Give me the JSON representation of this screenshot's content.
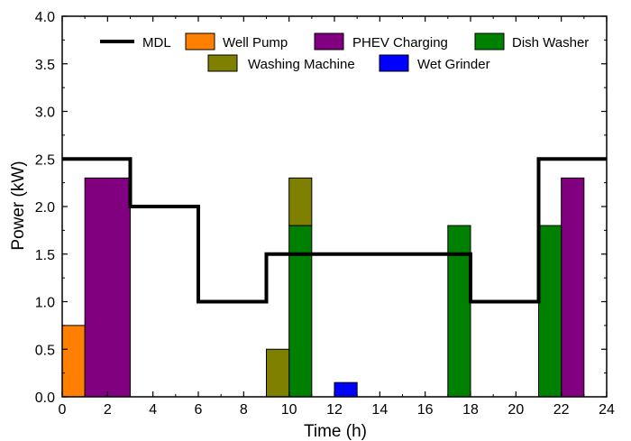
{
  "chart_data": {
    "type": "bar",
    "xlabel": "Time (h)",
    "ylabel": "Power (kW)",
    "xlim": [
      0,
      24
    ],
    "ylim": [
      0,
      4.0
    ],
    "x_ticks": [
      0,
      2,
      4,
      6,
      8,
      10,
      12,
      14,
      16,
      18,
      20,
      22,
      24
    ],
    "y_ticks": [
      "0.0",
      "0.5",
      "1.0",
      "1.5",
      "2.0",
      "2.5",
      "3.0",
      "3.5",
      "4.0"
    ],
    "grid": false,
    "legend_position": "top",
    "mdl": {
      "name": "MDL",
      "type": "step-line",
      "color": "#000000",
      "points": [
        [
          0,
          2.5
        ],
        [
          3,
          2.5
        ],
        [
          3,
          2.0
        ],
        [
          6,
          2.0
        ],
        [
          6,
          1.0
        ],
        [
          9,
          1.0
        ],
        [
          9,
          1.5
        ],
        [
          18,
          1.5
        ],
        [
          18,
          1.0
        ],
        [
          21,
          1.0
        ],
        [
          21,
          2.5
        ],
        [
          24,
          2.5
        ]
      ]
    },
    "series": [
      {
        "name": "Well Pump",
        "color": "#ff8000",
        "bars": [
          {
            "x0": 0,
            "x1": 1,
            "bottom": 0,
            "value": 0.75
          }
        ]
      },
      {
        "name": "PHEV Charging",
        "color": "#800080",
        "bars": [
          {
            "x0": 1,
            "x1": 3,
            "bottom": 0,
            "value": 2.3
          },
          {
            "x0": 22,
            "x1": 23,
            "bottom": 0,
            "value": 2.3
          }
        ]
      },
      {
        "name": "Dish Washer",
        "color": "#008000",
        "bars": [
          {
            "x0": 10,
            "x1": 11,
            "bottom": 0,
            "value": 1.8
          },
          {
            "x0": 17,
            "x1": 18,
            "bottom": 0,
            "value": 1.8
          },
          {
            "x0": 21,
            "x1": 22,
            "bottom": 0,
            "value": 1.8
          }
        ]
      },
      {
        "name": "Washing Machine",
        "color": "#808000",
        "bars": [
          {
            "x0": 9,
            "x1": 10,
            "bottom": 0,
            "value": 0.5
          },
          {
            "x0": 10,
            "x1": 11,
            "bottom": 1.8,
            "value": 2.3
          }
        ]
      },
      {
        "name": "Wet Grinder",
        "color": "#0000ff",
        "bars": [
          {
            "x0": 12,
            "x1": 13,
            "bottom": 0,
            "value": 0.15
          }
        ]
      }
    ]
  }
}
